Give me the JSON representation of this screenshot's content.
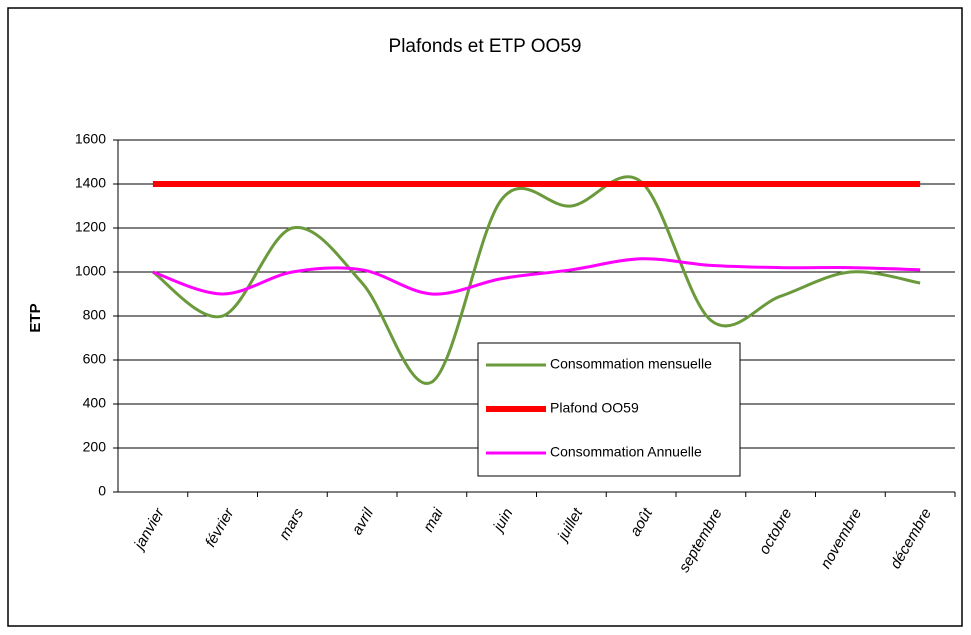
{
  "chart_data": {
    "type": "line",
    "title": "Plafonds et ETP OO59",
    "ylabel": "ETP",
    "categories": [
      "janvier",
      "février",
      "mars",
      "avril",
      "mai",
      "juin",
      "juillet",
      "août",
      "septembre",
      "octobre",
      "novembre",
      "décembre"
    ],
    "series": [
      {
        "name": "Consommation mensuelle",
        "color": "#6b9a3c",
        "values": [
          1000,
          800,
          1200,
          950,
          500,
          1330,
          1300,
          1410,
          780,
          890,
          1000,
          950
        ]
      },
      {
        "name": "Plafond OO59",
        "color": "#ff0000",
        "values": [
          1400,
          1400,
          1400,
          1400,
          1400,
          1400,
          1400,
          1400,
          1400,
          1400,
          1400,
          1400
        ]
      },
      {
        "name": "Consommation Annuelle",
        "color": "#ff00ff",
        "values": [
          1000,
          900,
          1000,
          1010,
          900,
          970,
          1010,
          1060,
          1030,
          1020,
          1020,
          1010
        ]
      }
    ],
    "ylim": [
      0,
      1600
    ],
    "yticks": [
      0,
      200,
      400,
      600,
      800,
      1000,
      1200,
      1400,
      1600
    ],
    "grid": true,
    "smooth": true
  }
}
